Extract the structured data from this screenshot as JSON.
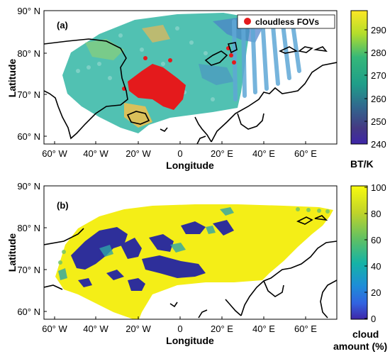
{
  "panel_a": {
    "label": "(a)",
    "legend_label": "cloudless FOVs",
    "y_ticks": [
      "90° N",
      "80° N",
      "70° N",
      "60° N"
    ],
    "x_ticks": [
      "60° W",
      "40° W",
      "20° W",
      "0",
      "20° E",
      "40° E",
      "60° E"
    ],
    "xlabel": "Longitude",
    "ylabel": "Latitude",
    "colorbar": {
      "ticks": [
        "290",
        "280",
        "270",
        "260",
        "250",
        "240"
      ],
      "unit_label": "BT/K",
      "colors": [
        "#fde725",
        "#b5de2b",
        "#35b779",
        "#1f9e89",
        "#31688e",
        "#443983",
        "#3e26a8"
      ]
    }
  },
  "panel_b": {
    "label": "(b)",
    "y_ticks": [
      "90° N",
      "80° N",
      "70° N",
      "60° N"
    ],
    "x_ticks": [
      "60° W",
      "40° W",
      "20° W",
      "0",
      "20° E",
      "40° E",
      "60° E"
    ],
    "xlabel": "Longitude",
    "ylabel": "Latitude",
    "colorbar": {
      "ticks": [
        "100",
        "80",
        "60",
        "40",
        "20",
        "0"
      ],
      "unit_line1": "cloud",
      "unit_line2": "amount (%)",
      "colors": [
        "#f9fb0e",
        "#c0d42a",
        "#5fc064",
        "#14b3a6",
        "#1e8dd8",
        "#3263e0",
        "#3e26a8"
      ]
    }
  },
  "colors": {
    "cloudless": "#e41a1c",
    "coast": "#000000",
    "cloud_full": "#f4ee17",
    "clear": "#2e2f9a"
  }
}
